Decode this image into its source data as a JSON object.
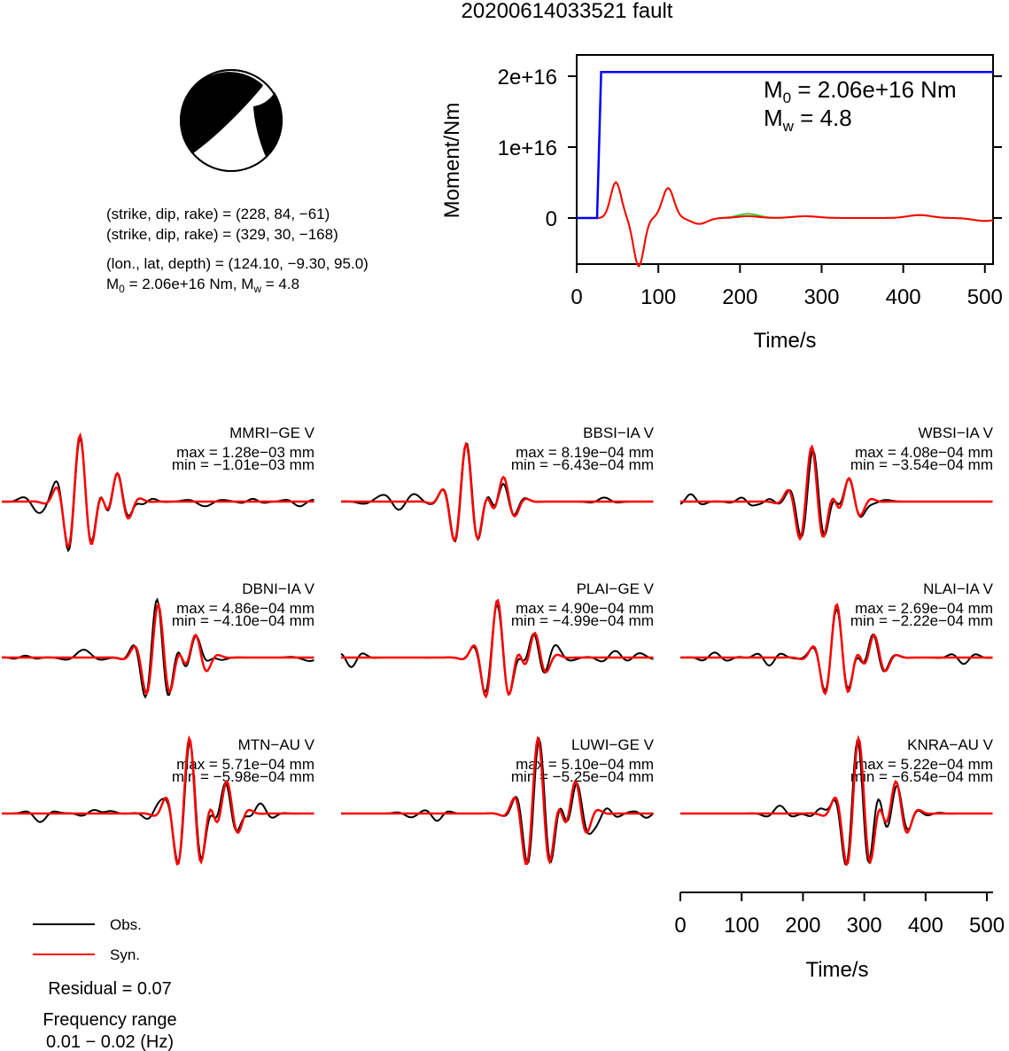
{
  "title": "20200614033521 fault",
  "mechanism": {
    "line1": "(strike, dip, rake) = (228, 84, −61)",
    "line2": "(strike, dip, rake) = (329, 30, −168)",
    "line3": "(lon., lat, depth) = (124.10, −9.30, 95.0)",
    "m0_label": "M",
    "m0_sub": "0",
    "m0_value": " = 2.06e+16 Nm, M",
    "mw_sub": "w",
    "mw_value": " = 4.8"
  },
  "moment_plot": {
    "ylabel": "Moment/Nm",
    "xlabel": "Time/s",
    "yticks": [
      "2e+16",
      "1e+16",
      "0"
    ],
    "xticks": [
      "0",
      "100",
      "200",
      "300",
      "400",
      "500"
    ],
    "m0_text": " = 2.06e+16 Nm",
    "mw_text": " = 4.8",
    "m_label": "M",
    "m0_sub": "0",
    "mw_sub": "w"
  },
  "chart_data": [
    {
      "type": "line",
      "name": "moment",
      "x": [
        0,
        25,
        30,
        510
      ],
      "y": [
        0,
        0,
        2.06e+16,
        2.06e+16
      ],
      "xlim": [
        0,
        510
      ],
      "ylim": [
        -6500000000000000.0,
        2.3e+16
      ],
      "xlabel": "Time/s",
      "ylabel": "Moment/Nm",
      "color": "#0000ff"
    },
    {
      "type": "line",
      "name": "waveforms",
      "xlabel": "Time/s",
      "xlim": [
        0,
        510
      ],
      "series": [
        {
          "name": "Obs.",
          "color": "#000000"
        },
        {
          "name": "Syn.",
          "color": "#ff0000"
        }
      ]
    }
  ],
  "stations": [
    {
      "label": "MMRI−GE V",
      "max": "max = 1.28e−03 mm",
      "min": "min = −1.01e−03 mm"
    },
    {
      "label": "BBSI−IA V",
      "max": "max = 8.19e−04 mm",
      "min": "min = −6.43e−04 mm"
    },
    {
      "label": "WBSI−IA V",
      "max": "max = 4.08e−04 mm",
      "min": "min = −3.54e−04 mm"
    },
    {
      "label": "DBNI−IA V",
      "max": "max = 4.86e−04 mm",
      "min": "min = −4.10e−04 mm"
    },
    {
      "label": "PLAI−GE V",
      "max": "max = 4.90e−04 mm",
      "min": "min = −4.99e−04 mm"
    },
    {
      "label": "NLAI−IA V",
      "max": "max = 2.69e−04 mm",
      "min": "min = −2.22e−04 mm"
    },
    {
      "label": "MTN−AU V",
      "max": "max = 5.71e−04 mm",
      "min": "min = −5.98e−04 mm"
    },
    {
      "label": "LUWI−GE V",
      "max": "max = 5.10e−04 mm",
      "min": "min = −5.25e−04 mm"
    },
    {
      "label": "KNRA−AU V",
      "max": "max = 5.22e−04 mm",
      "min": "min = −6.54e−04 mm"
    }
  ],
  "waveform_axis": {
    "xticks": [
      "0",
      "100",
      "200",
      "300",
      "400",
      "500"
    ],
    "xlabel": "Time/s"
  },
  "legend": {
    "obs": "Obs.",
    "syn": "Syn.",
    "residual": "Residual = 0.07",
    "freq_title": "Frequency range",
    "freq_value": "0.01 − 0.02 (Hz)"
  },
  "colors": {
    "obs": "#000000",
    "syn": "#ff0000",
    "moment": "#0000ff",
    "stf_green": "#33cc33"
  }
}
